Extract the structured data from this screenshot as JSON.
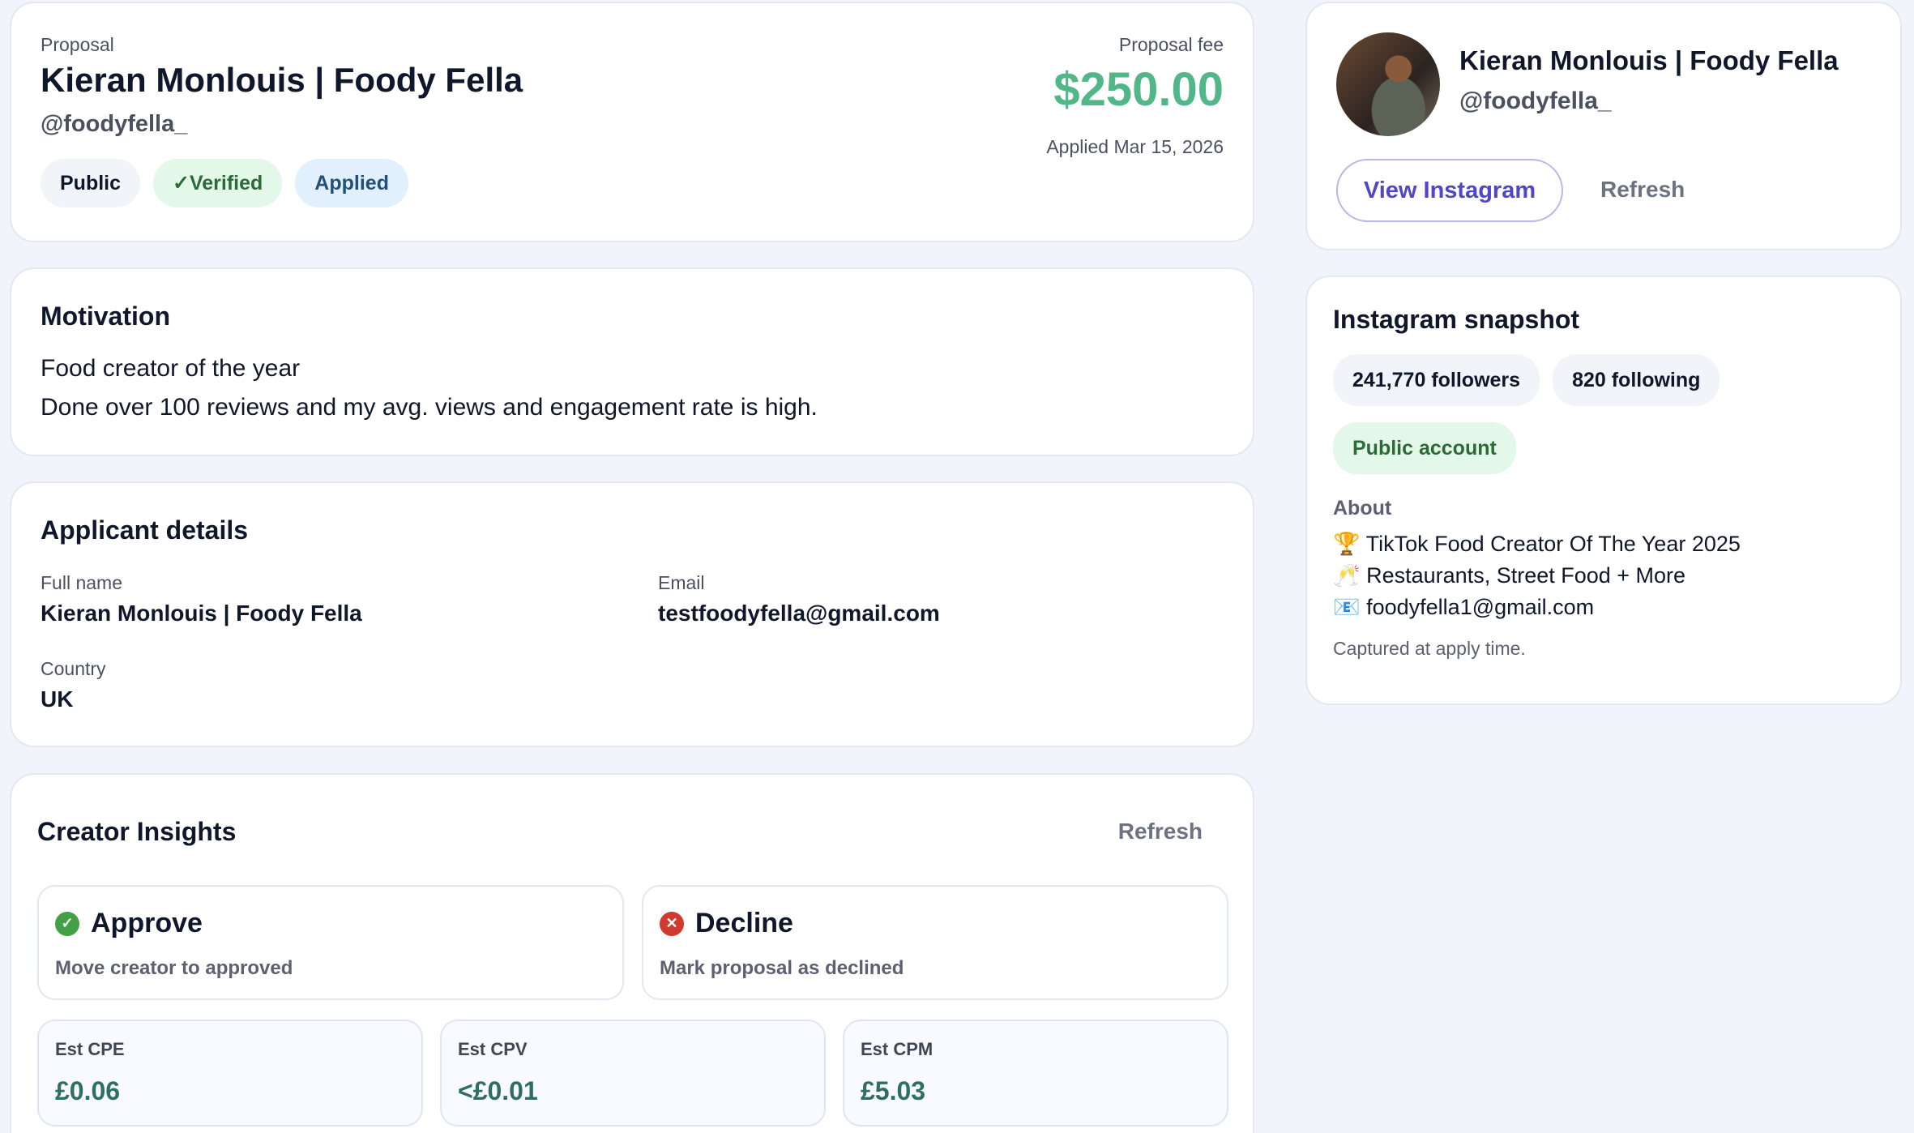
{
  "proposal": {
    "label": "Proposal",
    "name": "Kieran Monlouis | Foody Fella",
    "handle": "@foodyfella_",
    "fee_label": "Proposal fee",
    "fee": "$250.00",
    "applied": "Applied Mar 15, 2026",
    "badges": [
      "Public",
      "✓Verified",
      "Applied"
    ]
  },
  "motivation": {
    "title": "Motivation",
    "lines": [
      "Food creator of the year",
      "Done over 100 reviews and my avg. views and engagement rate is high."
    ]
  },
  "applicant": {
    "title": "Applicant details",
    "full_name_label": "Full name",
    "full_name": "Kieran Monlouis | Foody Fella",
    "email_label": "Email",
    "email": "testfoodyfella@gmail.com",
    "country_label": "Country",
    "country": "UK"
  },
  "insights": {
    "title": "Creator Insights",
    "refresh": "Refresh",
    "approve_title": "Approve",
    "approve_sub": "Move creator to approved",
    "decline_title": "Decline",
    "decline_sub": "Mark proposal as declined",
    "metrics": [
      {
        "label": "Est CPE",
        "value": "£0.06"
      },
      {
        "label": "Est CPV",
        "value": "<£0.01"
      },
      {
        "label": "Est CPM",
        "value": "£5.03"
      }
    ]
  },
  "profile": {
    "name": "Kieran Monlouis | Foody Fella",
    "handle": "@foodyfella_",
    "view_instagram": "View Instagram",
    "refresh": "Refresh"
  },
  "snapshot": {
    "title": "Instagram snapshot",
    "followers": "241,770 followers",
    "following": "820 following",
    "account": "Public account",
    "about_label": "About",
    "about": [
      "🏆 TikTok Food Creator Of The Year 2025",
      "🥂 Restaurants, Street Food + More",
      "📧 foodyfella1@gmail.com"
    ],
    "note": "Captured at apply time."
  },
  "colors": {
    "fee": "#52b788",
    "accent": "#4f46c8",
    "approve": "#43a047",
    "decline": "#d13a2f",
    "metric": "#2f6f63"
  }
}
